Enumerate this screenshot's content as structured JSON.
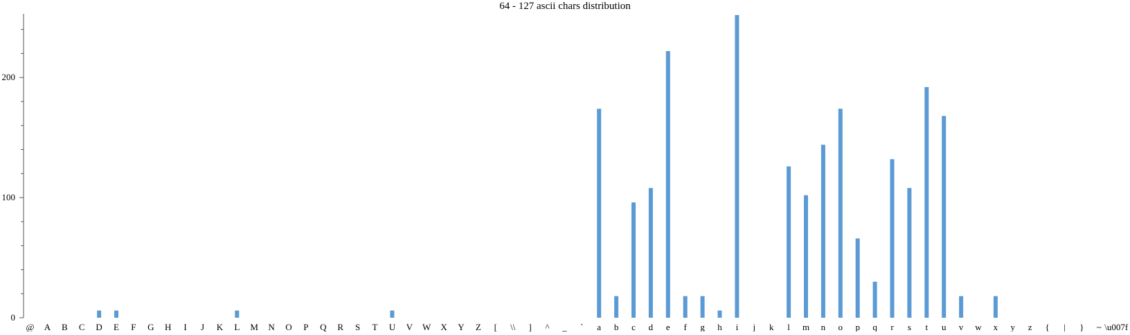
{
  "chart_data": {
    "type": "bar",
    "title": "64 - 127 ascii chars distribution",
    "xlabel": "",
    "ylabel": "",
    "ylim": [
      0,
      253
    ],
    "y_ticks": [
      0,
      100,
      200
    ],
    "bar_color": "#5b9bd5",
    "categories": [
      "@",
      "A",
      "B",
      "C",
      "D",
      "E",
      "F",
      "G",
      "H",
      "I",
      "J",
      "K",
      "L",
      "M",
      "N",
      "O",
      "P",
      "Q",
      "R",
      "S",
      "T",
      "U",
      "V",
      "W",
      "X",
      "Y",
      "Z",
      "[",
      "\\\\",
      "]",
      "^",
      "_",
      "`",
      "a",
      "b",
      "c",
      "d",
      "e",
      "f",
      "g",
      "h",
      "i",
      "j",
      "k",
      "l",
      "m",
      "n",
      "o",
      "p",
      "q",
      "r",
      "s",
      "t",
      "u",
      "v",
      "w",
      "x",
      "y",
      "z",
      "{",
      "|",
      "}",
      "~",
      "\\u007f"
    ],
    "values": [
      0,
      0,
      0,
      0,
      6,
      6,
      0,
      0,
      0,
      0,
      0,
      0,
      6,
      0,
      0,
      0,
      0,
      0,
      0,
      0,
      0,
      6,
      0,
      0,
      0,
      0,
      0,
      0,
      0,
      0,
      0,
      0,
      0,
      174,
      18,
      96,
      108,
      222,
      18,
      18,
      6,
      252,
      0,
      0,
      126,
      102,
      144,
      174,
      66,
      30,
      132,
      108,
      192,
      168,
      18,
      0,
      18,
      0,
      0,
      0,
      0,
      0,
      0,
      0
    ]
  }
}
